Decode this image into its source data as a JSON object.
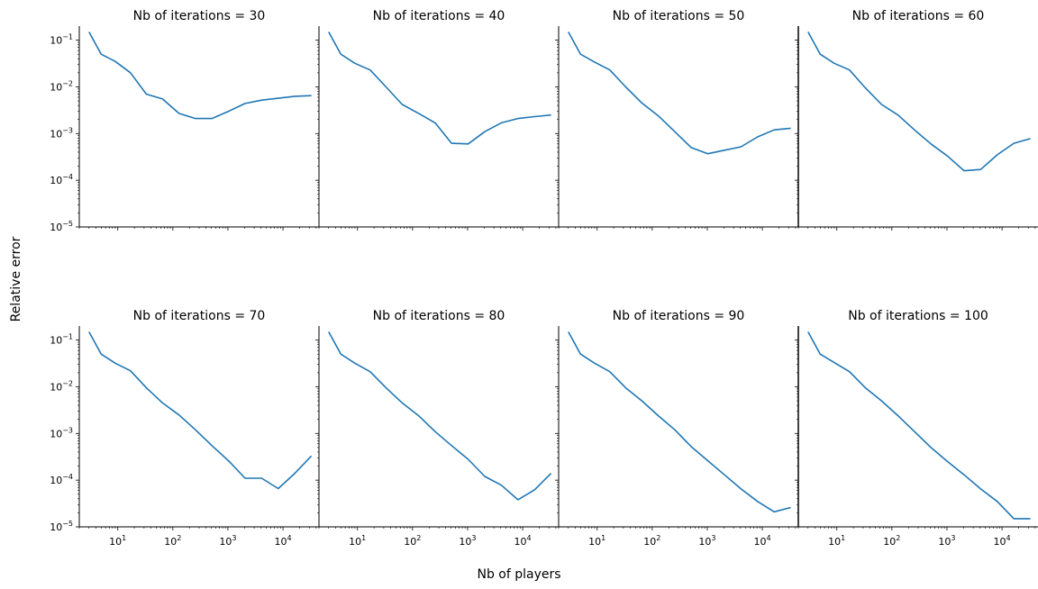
{
  "figure": {
    "xlabel": "Nb of players",
    "ylabel": "Relative error",
    "line_color": "#1f77b4"
  },
  "chart_data": [
    {
      "type": "line",
      "title": "Nb of iterations = 30",
      "xscale": "log",
      "yscale": "log",
      "xlim": [
        2,
        45000
      ],
      "ylim": [
        1e-05,
        0.2
      ],
      "x": [
        3,
        5,
        9,
        17,
        33,
        65,
        129,
        257,
        513,
        1025,
        2049,
        4097,
        8193,
        16385,
        32769
      ],
      "y": [
        0.15,
        0.05,
        0.035,
        0.02,
        0.007,
        0.0055,
        0.0027,
        0.0021,
        0.0021,
        0.003,
        0.0044,
        0.0052,
        0.0057,
        0.0063,
        0.0065
      ]
    },
    {
      "type": "line",
      "title": "Nb of iterations = 40",
      "xscale": "log",
      "yscale": "log",
      "xlim": [
        2,
        45000
      ],
      "ylim": [
        1e-05,
        0.2
      ],
      "x": [
        3,
        5,
        9,
        17,
        33,
        65,
        129,
        257,
        513,
        1025,
        2049,
        4097,
        8193,
        16385,
        32769
      ],
      "y": [
        0.15,
        0.05,
        0.032,
        0.023,
        0.01,
        0.0042,
        0.0027,
        0.0017,
        0.00062,
        0.0006,
        0.0011,
        0.0017,
        0.0021,
        0.0023,
        0.0025
      ]
    },
    {
      "type": "line",
      "title": "Nb of iterations = 50",
      "xscale": "log",
      "yscale": "log",
      "xlim": [
        2,
        45000
      ],
      "ylim": [
        1e-05,
        0.2
      ],
      "x": [
        3,
        5,
        9,
        17,
        33,
        65,
        129,
        257,
        513,
        1025,
        2049,
        4097,
        8193,
        16385,
        32769
      ],
      "y": [
        0.15,
        0.05,
        0.034,
        0.023,
        0.01,
        0.0045,
        0.0024,
        0.0011,
        0.0005,
        0.00037,
        0.00044,
        0.00052,
        0.00085,
        0.0012,
        0.0013
      ]
    },
    {
      "type": "line",
      "title": "Nb of iterations = 60",
      "xscale": "log",
      "yscale": "log",
      "xlim": [
        2,
        45000
      ],
      "ylim": [
        1e-05,
        0.2
      ],
      "x": [
        3,
        5,
        9,
        17,
        33,
        65,
        129,
        257,
        513,
        1025,
        2049,
        4097,
        8193,
        16385,
        32769
      ],
      "y": [
        0.15,
        0.05,
        0.032,
        0.023,
        0.0095,
        0.0042,
        0.0025,
        0.0012,
        0.0006,
        0.00033,
        0.00016,
        0.00017,
        0.00035,
        0.00062,
        0.00078
      ]
    },
    {
      "type": "line",
      "title": "Nb of iterations = 70",
      "xscale": "log",
      "yscale": "log",
      "xlim": [
        2,
        45000
      ],
      "ylim": [
        1e-05,
        0.2
      ],
      "x": [
        3,
        5,
        9,
        17,
        33,
        65,
        129,
        257,
        513,
        1025,
        2049,
        4097,
        8193,
        16385,
        32769
      ],
      "y": [
        0.15,
        0.05,
        0.032,
        0.022,
        0.0095,
        0.0045,
        0.0025,
        0.0012,
        0.00055,
        0.00026,
        0.00011,
        0.00011,
        6.6e-05,
        0.00014,
        0.00033
      ]
    },
    {
      "type": "line",
      "title": "Nb of iterations = 80",
      "xscale": "log",
      "yscale": "log",
      "xlim": [
        2,
        45000
      ],
      "ylim": [
        1e-05,
        0.2
      ],
      "x": [
        3,
        5,
        9,
        17,
        33,
        65,
        129,
        257,
        513,
        1025,
        2049,
        4097,
        8193,
        16385,
        32769
      ],
      "y": [
        0.15,
        0.05,
        0.032,
        0.021,
        0.0095,
        0.0045,
        0.0024,
        0.0011,
        0.00055,
        0.00028,
        0.00012,
        7.8e-05,
        3.8e-05,
        6.2e-05,
        0.00014
      ]
    },
    {
      "type": "line",
      "title": "Nb of iterations = 90",
      "xscale": "log",
      "yscale": "log",
      "xlim": [
        2,
        45000
      ],
      "ylim": [
        1e-05,
        0.2
      ],
      "x": [
        3,
        5,
        9,
        17,
        33,
        65,
        129,
        257,
        513,
        1025,
        2049,
        4097,
        8193,
        16385,
        32769
      ],
      "y": [
        0.15,
        0.05,
        0.032,
        0.021,
        0.0095,
        0.005,
        0.0024,
        0.0012,
        0.00052,
        0.00026,
        0.00013,
        6.5e-05,
        3.5e-05,
        2.1e-05,
        2.6e-05
      ]
    },
    {
      "type": "line",
      "title": "Nb of iterations = 100",
      "xscale": "log",
      "yscale": "log",
      "xlim": [
        2,
        45000
      ],
      "ylim": [
        1e-05,
        0.2
      ],
      "x": [
        3,
        5,
        9,
        17,
        33,
        65,
        129,
        257,
        513,
        1025,
        2049,
        4097,
        8193,
        16385,
        32769
      ],
      "y": [
        0.15,
        0.05,
        0.033,
        0.021,
        0.0095,
        0.005,
        0.0024,
        0.0011,
        0.0005,
        0.00025,
        0.00013,
        6.5e-05,
        3.5e-05,
        1.5e-05,
        1.5e-05
      ]
    }
  ]
}
